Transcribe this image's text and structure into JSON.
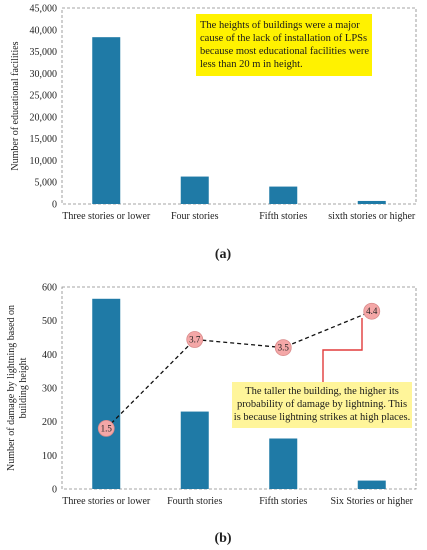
{
  "chart_data": [
    {
      "type": "bar",
      "panel_label": "(a)",
      "categories": [
        "Three stories or lower",
        "Four stories",
        "Fifth stories",
        "sixth stories or higher"
      ],
      "values": [
        38300,
        6300,
        4000,
        700
      ],
      "ylabel": "Number of educational facilities",
      "ylim": [
        0,
        45000
      ],
      "yticks": [
        "0",
        "5,000",
        "10,000",
        "15,000",
        "20,000",
        "25,000",
        "30,000",
        "35,000",
        "40,000",
        "45,000"
      ],
      "grid": false,
      "bar_color": "#1f7aa6",
      "annotation": {
        "lines": [
          "The heights of buildings were a major",
          "cause of the lack of installation of LPSs",
          "because most educational facilities were",
          "less than 20 m in height."
        ],
        "background": "#fff200"
      }
    },
    {
      "type": "bar+line",
      "panel_label": "(b)",
      "categories": [
        "Three stories or lower",
        "Fourth stories",
        "Fifth stories",
        "Six Stories or higher"
      ],
      "values": [
        565,
        230,
        150,
        25
      ],
      "line_values": [
        1.5,
        3.7,
        3.5,
        4.4
      ],
      "line_labels": [
        "1.5",
        "3.7",
        "3.5",
        "4.4"
      ],
      "ylabel": [
        "Number of damage by lightning based on",
        "building height"
      ],
      "ylim": [
        0,
        600
      ],
      "yticks": [
        "0",
        "100",
        "200",
        "300",
        "400",
        "500",
        "600"
      ],
      "grid": false,
      "bar_color": "#1f7aa6",
      "marker_color": "#f4a7a7",
      "annotation": {
        "lines": [
          "The taller the building, the higher its",
          "probability of damage by lightning. This",
          "is because lightning strikes at high places."
        ],
        "background": "#fff59a",
        "connector_color": "#e23b3b"
      }
    }
  ]
}
